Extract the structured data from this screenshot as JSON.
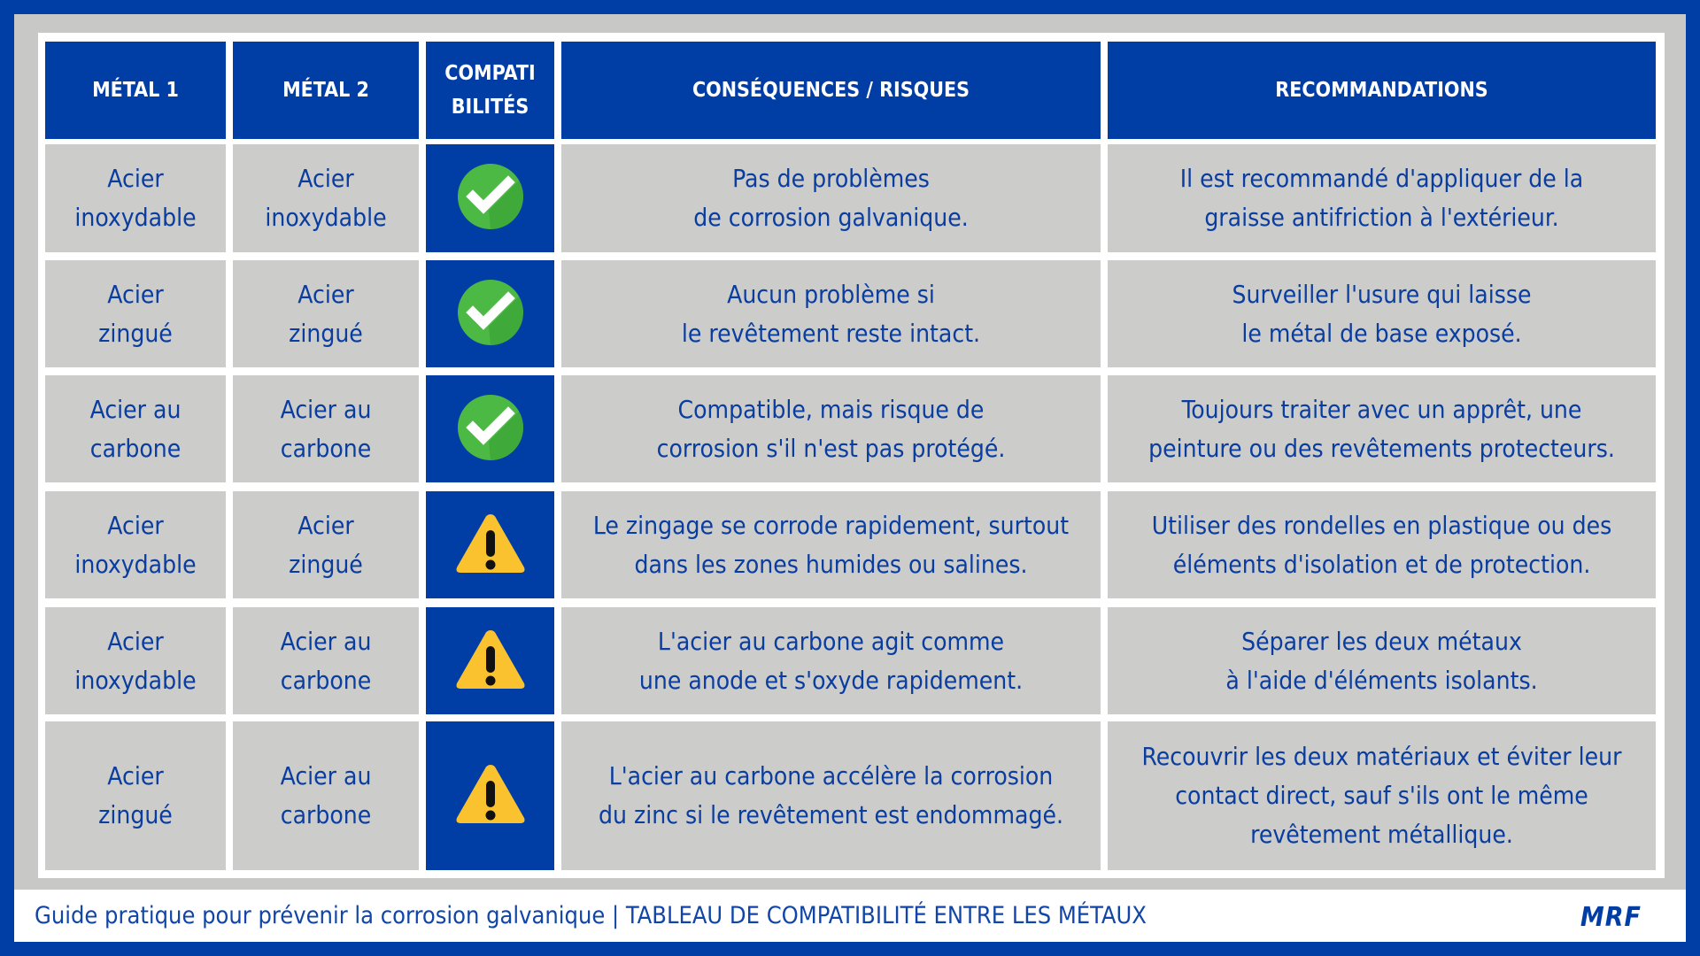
{
  "headers": {
    "metal1": "MÉTAL 1",
    "metal2": "MÉTAL 2",
    "compat": "COMPATI\nBILITÉS",
    "consequences": "CONSÉQUENCES / RISQUES",
    "recommendations": "RECOMMANDATIONS"
  },
  "colors": {
    "brand_blue": "#003da5",
    "text_blue": "#0a3da0",
    "cell_gray": "#c8c8c6",
    "ok_green": "#4cb944",
    "warn_yellow": "#f9c22e"
  },
  "rows": [
    {
      "metal1": "Acier\ninoxydable",
      "metal2": "Acier\ninoxydable",
      "compat": "check-icon",
      "consequences": "Pas de problèmes\nde corrosion galvanique.",
      "recommendations": "Il est recommandé d'appliquer de la\ngraisse antifriction à l'extérieur."
    },
    {
      "metal1": "Acier\nzingué",
      "metal2": "Acier\nzingué",
      "compat": "check-icon",
      "consequences": "Aucun problème si\nle revêtement reste intact.",
      "recommendations": "Surveiller l'usure qui laisse\nle métal de base exposé."
    },
    {
      "metal1": "Acier au\ncarbone",
      "metal2": "Acier au\ncarbone",
      "compat": "check-icon",
      "consequences": "Compatible, mais risque de\ncorrosion s'il n'est pas protégé.",
      "recommendations": "Toujours traiter avec un apprêt, une\npeinture ou des revêtements protecteurs."
    },
    {
      "metal1": "Acier\ninoxydable",
      "metal2": "Acier\nzingué",
      "compat": "warning-icon",
      "consequences": "Le zingage se corrode rapidement, surtout\ndans les zones humides ou salines.",
      "recommendations": "Utiliser des rondelles en plastique ou des\néléments d'isolation et de protection."
    },
    {
      "metal1": "Acier\ninoxydable",
      "metal2": "Acier au\ncarbone",
      "compat": "warning-icon",
      "consequences": "L'acier au carbone agit comme\nune anode et s'oxyde rapidement.",
      "recommendations": "Séparer les deux métaux\nà l'aide d'éléments isolants."
    },
    {
      "metal1": "Acier\nzingué",
      "metal2": "Acier au\ncarbone",
      "compat": "warning-icon",
      "consequences": "L'acier au carbone accélère la corrosion\ndu zinc si le revêtement est endommagé.",
      "recommendations": "Recouvrir les deux matériaux et éviter leur\ncontact direct, sauf s'ils ont le même\nrevêtement métallique."
    }
  ],
  "footer": {
    "text": "Guide pratique pour prévenir la corrosion galvanique | TABLEAU DE COMPATIBILITÉ ENTRE LES MÉTAUX",
    "logo": "MRF"
  }
}
